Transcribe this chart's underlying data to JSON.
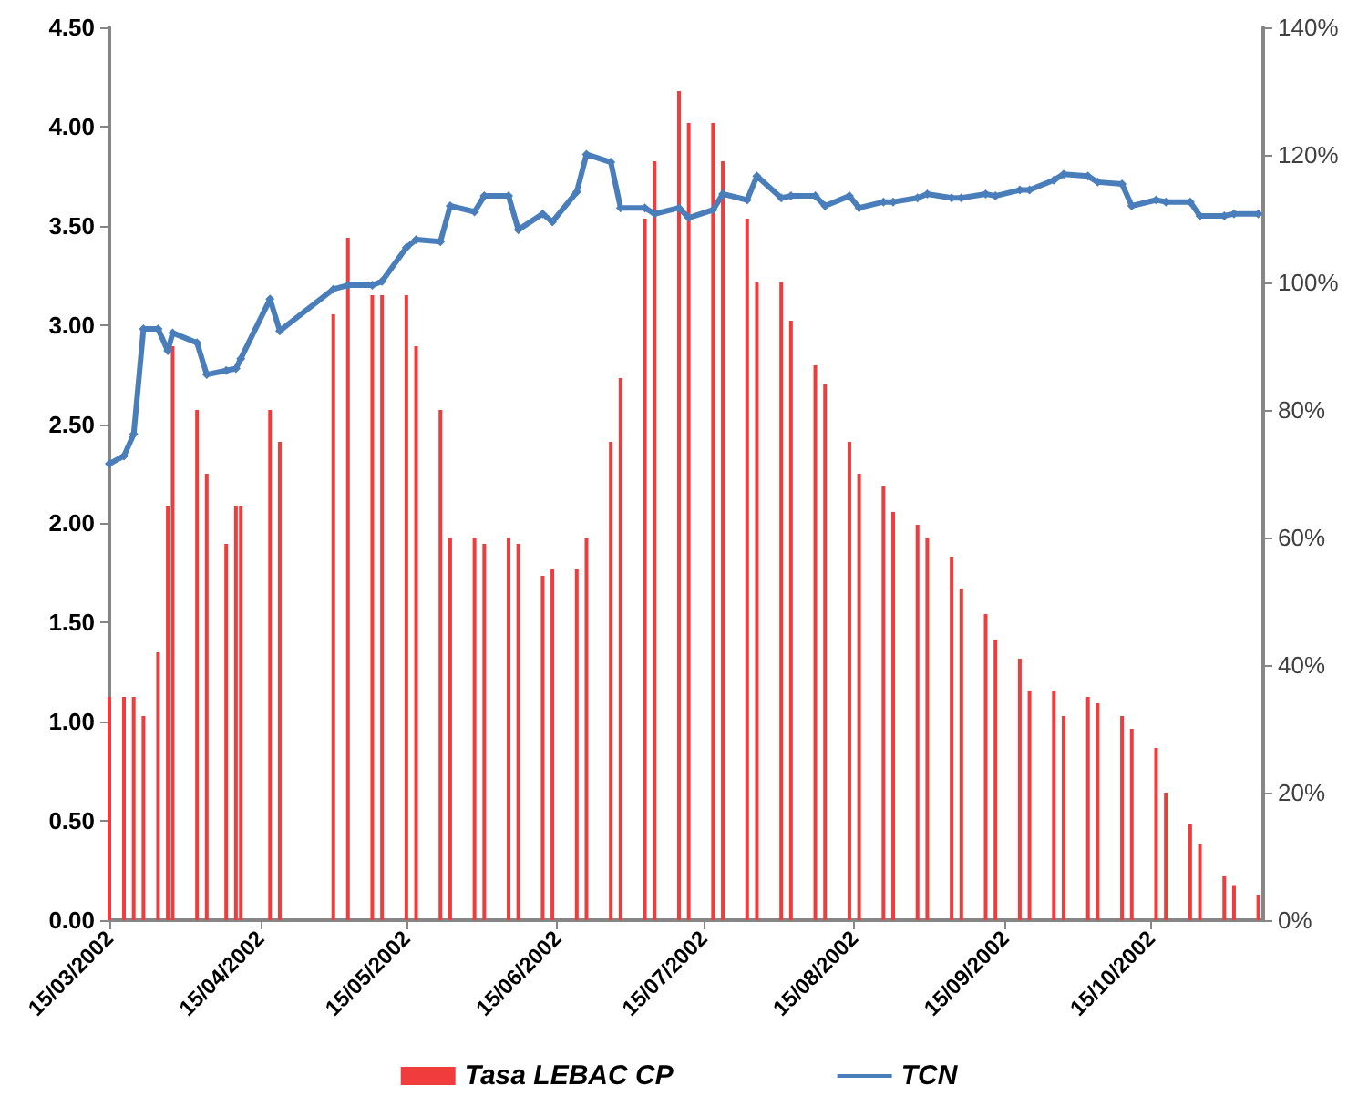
{
  "chart_data": {
    "type": "bar",
    "x": [
      "2002-03-15",
      "2002-03-18",
      "2002-03-20",
      "2002-03-22",
      "2002-03-25",
      "2002-03-27",
      "2002-03-28",
      "2002-04-02",
      "2002-04-04",
      "2002-04-08",
      "2002-04-10",
      "2002-04-11",
      "2002-04-17",
      "2002-04-19",
      "2002-04-30",
      "2002-05-03",
      "2002-05-08",
      "2002-05-10",
      "2002-05-15",
      "2002-05-17",
      "2002-05-22",
      "2002-05-24",
      "2002-05-29",
      "2002-05-31",
      "2002-06-05",
      "2002-06-07",
      "2002-06-12",
      "2002-06-14",
      "2002-06-19",
      "2002-06-21",
      "2002-06-26",
      "2002-06-28",
      "2002-07-03",
      "2002-07-05",
      "2002-07-10",
      "2002-07-12",
      "2002-07-17",
      "2002-07-19",
      "2002-07-24",
      "2002-07-26",
      "2002-07-31",
      "2002-08-02",
      "2002-08-07",
      "2002-08-09",
      "2002-08-14",
      "2002-08-16",
      "2002-08-21",
      "2002-08-23",
      "2002-08-28",
      "2002-08-30",
      "2002-09-04",
      "2002-09-06",
      "2002-09-11",
      "2002-09-13",
      "2002-09-18",
      "2002-09-20",
      "2002-09-25",
      "2002-09-27",
      "2002-10-02",
      "2002-10-04",
      "2002-10-09",
      "2002-10-11",
      "2002-10-16",
      "2002-10-18",
      "2002-10-23",
      "2002-10-25",
      "2002-10-30",
      "2002-11-01",
      "2002-11-06"
    ],
    "series": [
      {
        "name": "Tasa LEBAC CP",
        "axis": "y2",
        "color": "#f03c3c",
        "values": [
          35,
          35,
          35,
          32,
          42,
          65,
          90,
          80,
          70,
          59,
          65,
          65,
          80,
          75,
          95,
          107,
          98,
          98,
          98,
          90,
          80,
          60,
          60,
          59,
          60,
          59,
          54,
          55,
          55,
          60,
          75,
          85,
          110,
          119,
          130,
          125,
          125,
          119,
          110,
          100,
          100,
          94,
          87,
          84,
          75,
          70,
          68,
          64,
          62,
          60,
          57,
          52,
          48,
          44,
          41,
          36,
          36,
          32,
          35,
          34,
          32,
          30,
          27,
          20,
          15,
          12,
          7,
          5.5,
          4
        ]
      },
      {
        "name": "TCN",
        "type": "line",
        "color": "#4a7ebb",
        "values": [
          2.3,
          2.34,
          2.45,
          2.98,
          2.98,
          2.87,
          2.96,
          2.91,
          2.75,
          2.77,
          2.78,
          2.83,
          3.13,
          2.97,
          3.18,
          3.2,
          3.2,
          3.22,
          3.39,
          3.43,
          3.42,
          3.6,
          3.57,
          3.65,
          3.65,
          3.48,
          3.56,
          3.52,
          3.67,
          3.86,
          3.82,
          3.59,
          3.59,
          3.56,
          3.59,
          3.54,
          3.58,
          3.66,
          3.63,
          3.75,
          3.64,
          3.65,
          3.65,
          3.6,
          3.65,
          3.59,
          3.62,
          3.62,
          3.64,
          3.66,
          3.64,
          3.64,
          3.66,
          3.65,
          3.68,
          3.68,
          3.73,
          3.76,
          3.75,
          3.72,
          3.71,
          3.6,
          3.63,
          3.62,
          3.62,
          3.55,
          3.55,
          3.56,
          3.56
        ]
      }
    ],
    "xlim": [
      "2002-03-15",
      "2002-11-07"
    ],
    "xticks": [
      {
        "value": "2002-03-15",
        "label": "15/03/2002"
      },
      {
        "value": "2002-04-15",
        "label": "15/04/2002"
      },
      {
        "value": "2002-05-15",
        "label": "15/05/2002"
      },
      {
        "value": "2002-06-15",
        "label": "15/06/2002"
      },
      {
        "value": "2002-07-15",
        "label": "15/07/2002"
      },
      {
        "value": "2002-08-15",
        "label": "15/08/2002"
      },
      {
        "value": "2002-09-15",
        "label": "15/09/2002"
      },
      {
        "value": "2002-10-15",
        "label": "15/10/2002"
      }
    ],
    "ylim": [
      0,
      4.5
    ],
    "yticks": [
      {
        "value": 0,
        "label": "0.00"
      },
      {
        "value": 0.5,
        "label": "0.50"
      },
      {
        "value": 1,
        "label": "1.00"
      },
      {
        "value": 1.5,
        "label": "1.50"
      },
      {
        "value": 2,
        "label": "2.00"
      },
      {
        "value": 2.5,
        "label": "2.50"
      },
      {
        "value": 3,
        "label": "3.00"
      },
      {
        "value": 3.5,
        "label": "3.50"
      },
      {
        "value": 4,
        "label": "4.00"
      },
      {
        "value": 4.5,
        "label": "4.50"
      }
    ],
    "y2lim": [
      0,
      140
    ],
    "y2ticks": [
      {
        "value": 0,
        "label": "0%"
      },
      {
        "value": 20,
        "label": "20%"
      },
      {
        "value": 40,
        "label": "40%"
      },
      {
        "value": 60,
        "label": "60%"
      },
      {
        "value": 80,
        "label": "80%"
      },
      {
        "value": 100,
        "label": "100%"
      },
      {
        "value": 120,
        "label": "120%"
      },
      {
        "value": 140,
        "label": "140%"
      }
    ],
    "grid": false,
    "legend": "bottom",
    "marker": "diamond",
    "line_style": "solid"
  }
}
